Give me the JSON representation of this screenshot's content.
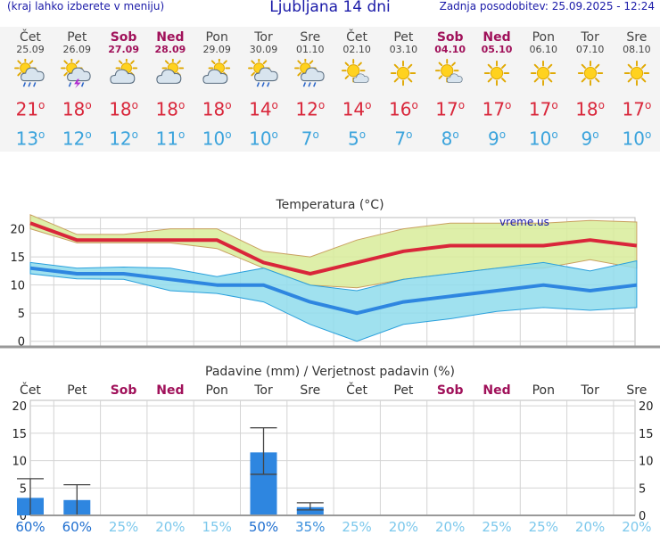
{
  "header": {
    "menu_hint": "(kraj lahko izberete v meniju)",
    "title": "Ljubljana 14 dni",
    "updated": "Zadnja posodobitev: 25.09.2025 - 12:24"
  },
  "days": [
    {
      "name": "Čet",
      "date": "25.09",
      "weekend": false,
      "icon": "sun-cloud-rain-icon",
      "tmax": 21,
      "tmin": 13
    },
    {
      "name": "Pet",
      "date": "26.09",
      "weekend": false,
      "icon": "sun-cloud-storm-icon",
      "tmax": 18,
      "tmin": 12
    },
    {
      "name": "Sob",
      "date": "27.09",
      "weekend": true,
      "icon": "sun-cloud-icon",
      "tmax": 18,
      "tmin": 12
    },
    {
      "name": "Ned",
      "date": "28.09",
      "weekend": true,
      "icon": "sun-cloud-icon",
      "tmax": 18,
      "tmin": 11
    },
    {
      "name": "Pon",
      "date": "29.09",
      "weekend": false,
      "icon": "sun-cloud-icon",
      "tmax": 18,
      "tmin": 10
    },
    {
      "name": "Tor",
      "date": "30.09",
      "weekend": false,
      "icon": "sun-cloud-rain-icon",
      "tmax": 14,
      "tmin": 10
    },
    {
      "name": "Sre",
      "date": "01.10",
      "weekend": false,
      "icon": "sun-cloud-rain-icon",
      "tmax": 12,
      "tmin": 7
    },
    {
      "name": "Čet",
      "date": "02.10",
      "weekend": false,
      "icon": "sun-small-cloud-icon",
      "tmax": 14,
      "tmin": 5
    },
    {
      "name": "Pet",
      "date": "03.10",
      "weekend": false,
      "icon": "sun-icon",
      "tmax": 16,
      "tmin": 7
    },
    {
      "name": "Sob",
      "date": "04.10",
      "weekend": true,
      "icon": "sun-small-cloud-icon",
      "tmax": 17,
      "tmin": 8
    },
    {
      "name": "Ned",
      "date": "05.10",
      "weekend": true,
      "icon": "sun-icon",
      "tmax": 17,
      "tmin": 9
    },
    {
      "name": "Pon",
      "date": "06.10",
      "weekend": false,
      "icon": "sun-icon",
      "tmax": 17,
      "tmin": 10
    },
    {
      "name": "Tor",
      "date": "07.10",
      "weekend": false,
      "icon": "sun-icon",
      "tmax": 18,
      "tmin": 9
    },
    {
      "name": "Sre",
      "date": "08.10",
      "weekend": false,
      "icon": "sun-icon",
      "tmax": 17,
      "tmin": 10
    }
  ],
  "degree_symbol": "o",
  "colors": {
    "tmax": "#d9263a",
    "tmin": "#3aa3dc",
    "weekend": "#a0115a",
    "max_band": "#d8ec9a",
    "min_band": "#8fdcec",
    "bar": "#2e86e0"
  },
  "chart_data": [
    {
      "type": "line",
      "title": "Temperatura (°C)",
      "watermark": "vreme.us",
      "ylim": [
        -1,
        22
      ],
      "yticks": [
        0,
        5,
        10,
        15,
        20
      ],
      "grid": true,
      "series": [
        {
          "values": [
            21,
            18,
            18,
            18,
            18,
            14,
            12,
            14,
            16,
            17,
            17,
            17,
            18,
            17
          ]
        },
        {
          "values": [
            13,
            12,
            12,
            11,
            10,
            10,
            7,
            5,
            7,
            8,
            9,
            10,
            9,
            10
          ]
        }
      ],
      "bands": [
        {
          "upper": [
            22.5,
            19,
            19,
            20,
            20,
            16,
            15,
            18,
            20,
            21,
            21,
            21,
            21.5,
            21.2
          ],
          "lower": [
            20,
            17.5,
            17.5,
            17.5,
            16.5,
            13,
            10,
            9.5,
            11,
            12,
            13,
            13,
            14.5,
            13
          ]
        },
        {
          "upper": [
            14,
            13,
            13.2,
            13,
            11.5,
            13,
            10,
            9,
            11,
            12,
            13,
            14,
            12.5,
            14.3
          ],
          "lower": [
            12,
            11.1,
            11,
            9,
            8.5,
            7,
            3,
            0,
            3,
            4,
            5.3,
            6,
            5.5,
            6
          ]
        }
      ]
    },
    {
      "type": "bar",
      "title": "Padavine (mm) / Verjetnost padavin (%)",
      "ylim": [
        0,
        21
      ],
      "yticks": [
        0,
        5,
        10,
        15,
        20
      ],
      "grid": true,
      "values": [
        3.2,
        2.8,
        0,
        0,
        0,
        11.5,
        1.5,
        0,
        0,
        0,
        0,
        0,
        0,
        0
      ],
      "error_low": [
        0,
        0,
        0,
        0,
        0,
        7.5,
        1.0,
        0,
        0,
        0,
        0,
        0,
        0,
        0
      ],
      "error_high": [
        6.7,
        5.6,
        0,
        0,
        0,
        16,
        2.3,
        0,
        0,
        0,
        0,
        0,
        0,
        0
      ],
      "probability_labels": [
        "60%",
        "60%",
        "25%",
        "20%",
        "15%",
        "50%",
        "35%",
        "25%",
        "20%",
        "20%",
        "25%",
        "25%",
        "20%",
        "20%"
      ],
      "probability": [
        60,
        60,
        25,
        20,
        15,
        50,
        35,
        25,
        20,
        20,
        25,
        25,
        20,
        20
      ]
    }
  ]
}
